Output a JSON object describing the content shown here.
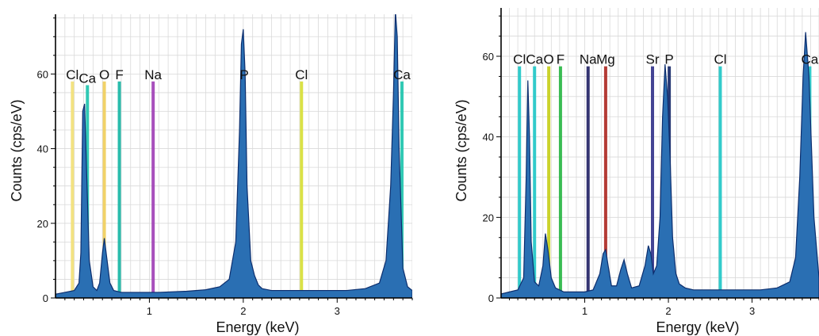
{
  "figure": {
    "panels": [
      {
        "ylabel": "Counts (cps/eV)",
        "xlabel": "Energy (keV)"
      },
      {
        "ylabel": "Counts (cps/eV)",
        "xlabel": "Energy (keV)"
      }
    ]
  },
  "colors": {
    "spectrum_fill": "#2a6fb3",
    "spectrum_stroke": "#0c2e6e",
    "grid": "#d9d9d9",
    "axis": "#000000",
    "Cl": "#f2e07a",
    "Ca": "#26c6b0",
    "O": "#f0d060",
    "F": "#1fb8a8",
    "Na": "#a347b8",
    "P": "#d8df3c",
    "Mg": "#b0302a",
    "Sr": "#3a3a8f"
  },
  "chart_data": [
    {
      "type": "area",
      "xlabel": "Energy (keV)",
      "ylabel": "Counts (cps/eV)",
      "xlim": [
        0.0,
        3.8
      ],
      "ylim": [
        0,
        76
      ],
      "x_ticks": [
        1,
        2,
        3
      ],
      "y_ticks": [
        0,
        20,
        40,
        60
      ],
      "grid": true,
      "series": [
        {
          "x": [
            0.0,
            0.1,
            0.2,
            0.25,
            0.27,
            0.29,
            0.31,
            0.33,
            0.36,
            0.4,
            0.44,
            0.47,
            0.5,
            0.52,
            0.55,
            0.58,
            0.62,
            0.7,
            0.8,
            0.9,
            1.0,
            1.1,
            1.2,
            1.4,
            1.6,
            1.75,
            1.85,
            1.92,
            1.96,
            1.98,
            2.0,
            2.02,
            2.04,
            2.08,
            2.12,
            2.16,
            2.2,
            2.3,
            2.5,
            2.7,
            2.9,
            3.1,
            3.3,
            3.45,
            3.52,
            3.57,
            3.6,
            3.62,
            3.64,
            3.66,
            3.7,
            3.75,
            3.8
          ],
          "y": [
            1.0,
            1.5,
            2.0,
            4.0,
            12.0,
            50.0,
            52.0,
            35.0,
            10.0,
            3.0,
            2.0,
            4.0,
            12.0,
            16.0,
            10.0,
            4.0,
            2.0,
            1.5,
            1.5,
            1.5,
            1.5,
            1.5,
            1.6,
            1.8,
            2.2,
            3.0,
            5.0,
            15.0,
            45.0,
            68.0,
            72.0,
            60.0,
            30.0,
            10.0,
            6.0,
            3.5,
            2.5,
            2.0,
            2.0,
            2.0,
            2.0,
            2.0,
            2.5,
            4.0,
            10.0,
            30.0,
            55.0,
            77.0,
            70.0,
            40.0,
            8.0,
            3.0,
            2.0
          ]
        }
      ],
      "element_lines": [
        {
          "label": "Cl",
          "energy": 0.18,
          "height": 58,
          "color": "#f2e07a"
        },
        {
          "label": "Ca",
          "energy": 0.34,
          "height": 57,
          "color": "#26c6b0"
        },
        {
          "label": "O",
          "energy": 0.52,
          "height": 58,
          "color": "#f0d060"
        },
        {
          "label": "F",
          "energy": 0.68,
          "height": 58,
          "color": "#1fb8a8"
        },
        {
          "label": "Na",
          "energy": 1.04,
          "height": 58,
          "color": "#a347b8"
        },
        {
          "label": "P",
          "energy": 2.01,
          "height": 58,
          "color": "#d8df3c"
        },
        {
          "label": "Cl",
          "energy": 2.62,
          "height": 58,
          "color": "#d8df3c"
        },
        {
          "label": "Ca",
          "energy": 3.69,
          "height": 58,
          "color": "#26c6b0"
        }
      ]
    },
    {
      "type": "area",
      "xlabel": "Energy (keV)",
      "ylabel": "Counts (cps/eV)",
      "xlim": [
        0.0,
        3.8
      ],
      "ylim": [
        0,
        72
      ],
      "x_ticks": [
        1,
        2,
        3
      ],
      "y_ticks": [
        0,
        20,
        40,
        60
      ],
      "grid": true,
      "series": [
        {
          "x": [
            0.0,
            0.1,
            0.2,
            0.27,
            0.3,
            0.32,
            0.34,
            0.36,
            0.4,
            0.45,
            0.5,
            0.53,
            0.56,
            0.6,
            0.65,
            0.75,
            0.9,
            1.0,
            1.1,
            1.18,
            1.22,
            1.25,
            1.28,
            1.32,
            1.38,
            1.43,
            1.47,
            1.51,
            1.56,
            1.65,
            1.72,
            1.76,
            1.79,
            1.82,
            1.86,
            1.9,
            1.93,
            1.96,
            1.99,
            2.02,
            2.05,
            2.09,
            2.13,
            2.2,
            2.3,
            2.5,
            2.7,
            2.9,
            3.1,
            3.3,
            3.45,
            3.52,
            3.57,
            3.61,
            3.64,
            3.68,
            3.74,
            3.8
          ],
          "y": [
            1.0,
            1.5,
            2.0,
            5.0,
            30.0,
            54.0,
            40.0,
            14.0,
            4.0,
            3.0,
            8.0,
            16.0,
            12.0,
            5.0,
            2.5,
            1.5,
            1.5,
            1.5,
            2.0,
            6.0,
            11.0,
            12.0,
            8.0,
            3.0,
            3.0,
            7.0,
            9.5,
            6.0,
            2.5,
            3.0,
            8.0,
            13.0,
            11.0,
            6.0,
            8.0,
            20.0,
            45.0,
            58.0,
            50.0,
            35.0,
            15.0,
            6.0,
            3.5,
            2.5,
            2.0,
            2.0,
            2.0,
            2.0,
            2.0,
            2.5,
            4.0,
            10.0,
            30.0,
            55.0,
            66.0,
            55.0,
            20.0,
            5.0
          ]
        }
      ],
      "element_lines": [
        {
          "label": "Cl",
          "energy": 0.22,
          "height": 57.5,
          "color": "#27c8c8"
        },
        {
          "label": "Ca",
          "energy": 0.4,
          "height": 57.5,
          "color": "#27c8c8"
        },
        {
          "label": "O",
          "energy": 0.57,
          "height": 57.5,
          "color": "#c8d020"
        },
        {
          "label": "F",
          "energy": 0.71,
          "height": 57.5,
          "color": "#2fb84a"
        },
        {
          "label": "Na",
          "energy": 1.04,
          "height": 57.5,
          "color": "#2a2a6a"
        },
        {
          "label": "Mg",
          "energy": 1.25,
          "height": 57.5,
          "color": "#b0302a"
        },
        {
          "label": "Sr",
          "energy": 1.81,
          "height": 57.5,
          "color": "#3a3a8f"
        },
        {
          "label": "P",
          "energy": 2.01,
          "height": 57.5,
          "color": "#1c2e6e"
        },
        {
          "label": "Cl",
          "energy": 2.62,
          "height": 57.5,
          "color": "#27c8c8"
        },
        {
          "label": "Ca",
          "energy": 3.69,
          "height": 57.5,
          "color": "#27c8c8"
        }
      ]
    }
  ]
}
